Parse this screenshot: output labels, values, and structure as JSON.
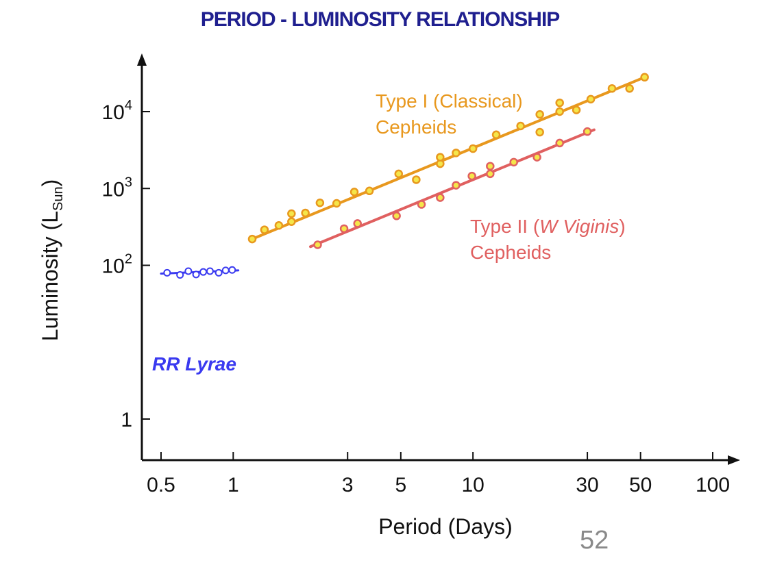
{
  "page": {
    "slide_number": "52"
  },
  "colors": {
    "title": "#1f1f8f",
    "axis": "#111111",
    "type1": "#e8981e",
    "type2": "#e06060",
    "rr": "#3a3af0"
  },
  "chart_data": {
    "type": "scatter",
    "title": "PERIOD - LUMINOSITY RELATIONSHIP",
    "xlabel": "Period (Days)",
    "ylabel": "Luminosity (L",
    "ylabel_sub": "Sun",
    "ylabel_end": ")",
    "x_scale": "log",
    "y_scale": "log",
    "xlim": [
      0.5,
      100
    ],
    "ylim": [
      0.5,
      40000
    ],
    "x_ticks": [
      0.5,
      1,
      3,
      5,
      10,
      30,
      50,
      100
    ],
    "x_tick_labels": [
      "0.5",
      "1",
      "3",
      "5",
      "10",
      "30",
      "50",
      "100"
    ],
    "y_ticks": [
      1,
      100,
      1000,
      10000
    ],
    "y_tick_labels": [
      {
        "base": "1",
        "exp": ""
      },
      {
        "base": "10",
        "exp": "2"
      },
      {
        "base": "10",
        "exp": "3"
      },
      {
        "base": "10",
        "exp": "4"
      }
    ],
    "series": [
      {
        "name": "Type I (Classical) Cepheids",
        "label_lines": [
          "Type I (Classical)",
          "Cepheids"
        ],
        "color": "#e8981e",
        "fit": [
          [
            1.2,
            220
          ],
          [
            52,
            28000
          ]
        ],
        "points": [
          [
            1.2,
            220
          ],
          [
            1.35,
            290
          ],
          [
            1.55,
            330
          ],
          [
            1.75,
            370
          ],
          [
            1.75,
            470
          ],
          [
            2.0,
            480
          ],
          [
            2.3,
            650
          ],
          [
            2.7,
            640
          ],
          [
            3.2,
            900
          ],
          [
            3.7,
            930
          ],
          [
            4.9,
            1550
          ],
          [
            5.8,
            1300
          ],
          [
            7.3,
            2100
          ],
          [
            7.3,
            2550
          ],
          [
            8.5,
            2900
          ],
          [
            10.0,
            3300
          ],
          [
            12.5,
            5000
          ],
          [
            15.8,
            6500
          ],
          [
            19.0,
            5400
          ],
          [
            19.0,
            9200
          ],
          [
            23.0,
            10000
          ],
          [
            23.0,
            13000
          ],
          [
            27.0,
            10500
          ],
          [
            31.0,
            14500
          ],
          [
            38.0,
            20000
          ],
          [
            45.0,
            20000
          ],
          [
            52.0,
            28000
          ]
        ]
      },
      {
        "name": "Type II (W Viginis) Cepheids",
        "label_lines": [
          "Type II (",
          "W Viginis",
          ")",
          "Cepheids"
        ],
        "color": "#e06060",
        "fit": [
          [
            2.1,
            175
          ],
          [
            32,
            5800
          ]
        ],
        "points": [
          [
            2.25,
            185
          ],
          [
            2.9,
            300
          ],
          [
            3.3,
            350
          ],
          [
            4.8,
            440
          ],
          [
            6.1,
            620
          ],
          [
            7.3,
            760
          ],
          [
            8.5,
            1100
          ],
          [
            9.9,
            1450
          ],
          [
            11.8,
            1550
          ],
          [
            11.8,
            1950
          ],
          [
            14.8,
            2200
          ],
          [
            18.5,
            2550
          ],
          [
            23.0,
            3900
          ],
          [
            30.0,
            5500
          ]
        ]
      },
      {
        "name": "RR Lyrae",
        "label_lines": [
          "RR Lyrae"
        ],
        "color": "#3a3af0",
        "fit": [
          [
            0.5,
            78
          ],
          [
            1.05,
            86
          ]
        ],
        "points": [
          [
            0.53,
            80
          ],
          [
            0.6,
            75
          ],
          [
            0.65,
            84
          ],
          [
            0.7,
            76
          ],
          [
            0.75,
            82
          ],
          [
            0.8,
            84
          ],
          [
            0.87,
            80
          ],
          [
            0.93,
            86
          ],
          [
            0.99,
            87
          ]
        ]
      }
    ]
  }
}
